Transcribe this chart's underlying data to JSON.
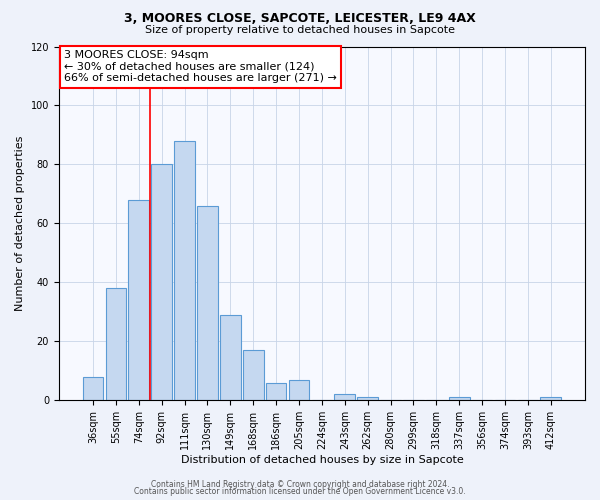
{
  "title": "3, MOORES CLOSE, SAPCOTE, LEICESTER, LE9 4AX",
  "subtitle": "Size of property relative to detached houses in Sapcote",
  "xlabel": "Distribution of detached houses by size in Sapcote",
  "ylabel": "Number of detached properties",
  "bar_labels": [
    "36sqm",
    "55sqm",
    "74sqm",
    "92sqm",
    "111sqm",
    "130sqm",
    "149sqm",
    "168sqm",
    "186sqm",
    "205sqm",
    "224sqm",
    "243sqm",
    "262sqm",
    "280sqm",
    "299sqm",
    "318sqm",
    "337sqm",
    "356sqm",
    "374sqm",
    "393sqm",
    "412sqm"
  ],
  "bar_values": [
    8,
    38,
    68,
    80,
    88,
    66,
    29,
    17,
    6,
    7,
    0,
    2,
    1,
    0,
    0,
    0,
    1,
    0,
    0,
    0,
    1
  ],
  "bar_color": "#c5d8f0",
  "bar_edge_color": "#5b9bd5",
  "ylim": [
    0,
    120
  ],
  "yticks": [
    0,
    20,
    40,
    60,
    80,
    100,
    120
  ],
  "red_line_index": 3,
  "annotation_title": "3 MOORES CLOSE: 94sqm",
  "annotation_line1": "← 30% of detached houses are smaller (124)",
  "annotation_line2": "66% of semi-detached houses are larger (271) →",
  "footer_line1": "Contains HM Land Registry data © Crown copyright and database right 2024.",
  "footer_line2": "Contains public sector information licensed under the Open Government Licence v3.0.",
  "bg_color": "#eef2fa",
  "plot_bg_color": "#f7f9ff",
  "grid_color": "#c8d4e8",
  "title_fontsize": 9,
  "subtitle_fontsize": 8,
  "tick_fontsize": 7,
  "label_fontsize": 8,
  "annotation_fontsize": 8,
  "footer_fontsize": 5.5
}
